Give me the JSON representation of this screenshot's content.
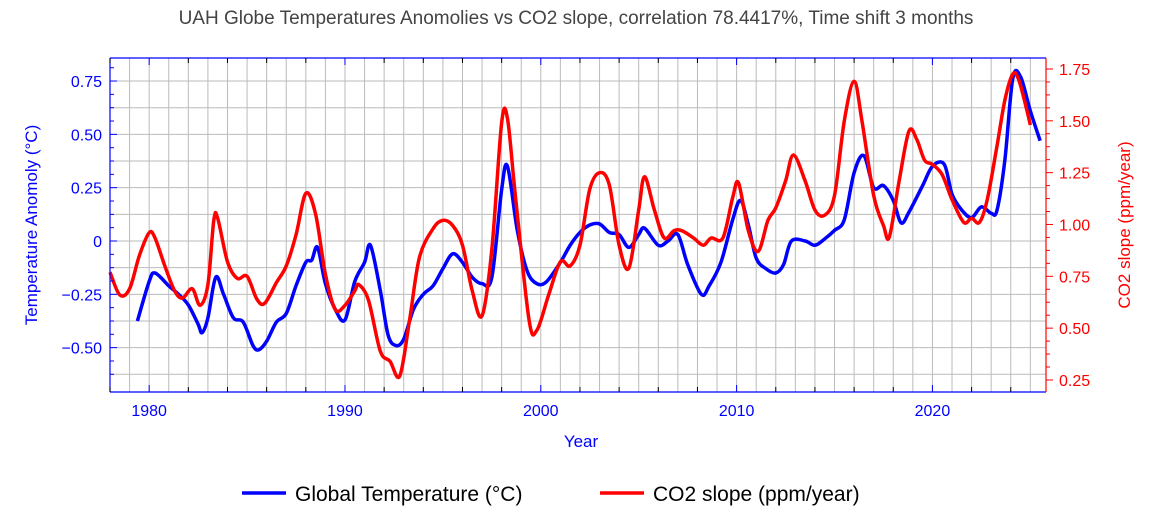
{
  "chart_data": {
    "type": "line",
    "title": "UAH Globe Temperatures Anomolies vs CO2 slope, correlation 78.4417%, Time shift 3 months",
    "xlabel": "Year",
    "ylabel": "Temperature Anomoly (°C)",
    "y2label": "CO2 slope (ppm/year)",
    "xlim": [
      1978,
      2025.8
    ],
    "ylim": [
      -0.708,
      0.858
    ],
    "y2lim": [
      0.192,
      1.803
    ],
    "xticks": [
      1980,
      1990,
      2000,
      2010,
      2020
    ],
    "xtick_labels": [
      "1980",
      "1990",
      "2000",
      "2010",
      "2020"
    ],
    "yticks": [
      0.75,
      0.5,
      0.25,
      0,
      -0.25,
      -0.5
    ],
    "ytick_labels": [
      "0.75",
      "0.50",
      "0.25",
      "0",
      "−0.25",
      "−0.50"
    ],
    "y2ticks": [
      1.75,
      1.5,
      1.25,
      1.0,
      0.75,
      0.5,
      0.25
    ],
    "y2tick_labels": [
      "1.75",
      "1.50",
      "1.25",
      "1.00",
      "0.75",
      "0.50",
      "0.25"
    ],
    "grid": true,
    "legend_position": "bottom",
    "colors": {
      "temp": "#0000ff",
      "co2": "#ff0000",
      "grid": "#bbbbbb"
    },
    "series": [
      {
        "name": "Global Temperature (°C)",
        "axis": "left",
        "x": [
          1979.4,
          1980,
          1980.3,
          1981,
          1981.5,
          1982,
          1982.5,
          1982.7,
          1983,
          1983.4,
          1983.8,
          1984.3,
          1984.8,
          1985.3,
          1985.6,
          1986,
          1986.5,
          1987,
          1987.5,
          1988,
          1988.3,
          1988.6,
          1989,
          1989.5,
          1990,
          1990.5,
          1991,
          1991.3,
          1991.8,
          1992.2,
          1992.6,
          1993,
          1993.5,
          1994,
          1994.5,
          1995,
          1995.5,
          1996,
          1996.5,
          1997,
          1997.5,
          1998,
          1998.3,
          1998.8,
          1999.3,
          1999.8,
          2000.3,
          2001,
          2001.5,
          2002,
          2002.5,
          2003,
          2003.5,
          2004,
          2004.5,
          2005,
          2005.3,
          2006,
          2006.5,
          2007,
          2007.5,
          2008.2,
          2008.6,
          2009.2,
          2009.8,
          2010.2,
          2010.6,
          2011,
          2011.5,
          2012,
          2012.4,
          2012.8,
          2013.5,
          2014,
          2014.5,
          2015,
          2015.5,
          2016,
          2016.5,
          2017,
          2017.5,
          2018,
          2018.4,
          2018.8,
          2019.5,
          2020,
          2020.6,
          2021,
          2021.5,
          2022,
          2022.5,
          2023,
          2023.3,
          2023.7,
          2024.1,
          2024.5,
          2025,
          2025.5
        ],
        "values": [
          -0.375,
          -0.19,
          -0.15,
          -0.21,
          -0.25,
          -0.3,
          -0.39,
          -0.43,
          -0.36,
          -0.17,
          -0.25,
          -0.36,
          -0.38,
          -0.49,
          -0.51,
          -0.47,
          -0.38,
          -0.34,
          -0.21,
          -0.1,
          -0.09,
          -0.03,
          -0.2,
          -0.32,
          -0.37,
          -0.19,
          -0.1,
          -0.02,
          -0.23,
          -0.44,
          -0.49,
          -0.46,
          -0.32,
          -0.25,
          -0.21,
          -0.13,
          -0.06,
          -0.1,
          -0.17,
          -0.2,
          -0.17,
          0.24,
          0.35,
          0.05,
          -0.14,
          -0.2,
          -0.19,
          -0.1,
          -0.02,
          0.04,
          0.075,
          0.08,
          0.04,
          0.03,
          -0.03,
          0.03,
          0.06,
          -0.02,
          0,
          0.03,
          -0.11,
          -0.25,
          -0.21,
          -0.1,
          0.1,
          0.19,
          0.075,
          -0.08,
          -0.13,
          -0.15,
          -0.11,
          0,
          0,
          -0.02,
          0.01,
          0.05,
          0.1,
          0.32,
          0.4,
          0.25,
          0.26,
          0.19,
          0.085,
          0.135,
          0.26,
          0.35,
          0.36,
          0.22,
          0.145,
          0.11,
          0.16,
          0.13,
          0.145,
          0.38,
          0.76,
          0.77,
          0.61,
          0.47
        ]
      },
      {
        "name": "CO2 slope (ppm/year)",
        "axis": "right",
        "x": [
          1978,
          1978.5,
          1979,
          1979.5,
          1980,
          1980.3,
          1980.8,
          1981.3,
          1981.7,
          1982.2,
          1982.6,
          1983,
          1983.3,
          1983.5,
          1984,
          1984.5,
          1985,
          1985.5,
          1985.9,
          1986.5,
          1987,
          1987.5,
          1988,
          1988.5,
          1989,
          1989.5,
          1990,
          1990.5,
          1990.7,
          1991.2,
          1991.8,
          1992.3,
          1992.8,
          1993.3,
          1993.8,
          1994.5,
          1995,
          1995.5,
          1996,
          1996.5,
          1997,
          1997.5,
          1998,
          1998.3,
          1998.7,
          1999.4,
          1999.8,
          2000.4,
          2001,
          2001.5,
          2002,
          2002.5,
          2003,
          2003.5,
          2004,
          2004.5,
          2005,
          2005.3,
          2005.8,
          2006.3,
          2006.8,
          2007.2,
          2007.8,
          2008.3,
          2008.7,
          2009.3,
          2009.8,
          2010.1,
          2010.6,
          2011.1,
          2011.6,
          2012,
          2012.5,
          2012.9,
          2013.5,
          2014,
          2014.5,
          2015,
          2015.5,
          2016,
          2016.4,
          2017,
          2017.5,
          2017.8,
          2018.3,
          2018.8,
          2019.2,
          2019.6,
          2020,
          2020.5,
          2021,
          2021.6,
          2022,
          2022.4,
          2022.8,
          2023.3,
          2023.7,
          2024.1,
          2024.4,
          2024.8,
          2025
        ],
        "values": [
          0.77,
          0.66,
          0.69,
          0.85,
          0.96,
          0.935,
          0.8,
          0.68,
          0.645,
          0.69,
          0.61,
          0.71,
          1.02,
          1.03,
          0.82,
          0.74,
          0.75,
          0.64,
          0.62,
          0.72,
          0.8,
          0.95,
          1.15,
          1.05,
          0.76,
          0.59,
          0.61,
          0.68,
          0.71,
          0.635,
          0.39,
          0.34,
          0.27,
          0.54,
          0.84,
          0.98,
          1.02,
          0.995,
          0.9,
          0.68,
          0.56,
          0.88,
          1.49,
          1.51,
          1.14,
          0.54,
          0.49,
          0.66,
          0.82,
          0.8,
          0.9,
          1.17,
          1.25,
          1.19,
          0.9,
          0.79,
          1.07,
          1.23,
          1.07,
          0.935,
          0.97,
          0.97,
          0.935,
          0.9,
          0.935,
          0.935,
          1.13,
          1.2,
          0.97,
          0.87,
          1.02,
          1.08,
          1.21,
          1.335,
          1.21,
          1.07,
          1.045,
          1.14,
          1.5,
          1.69,
          1.5,
          1.14,
          0.995,
          0.94,
          1.21,
          1.45,
          1.41,
          1.31,
          1.29,
          1.24,
          1.12,
          1.01,
          1.03,
          1.01,
          1.12,
          1.38,
          1.6,
          1.725,
          1.7,
          1.56,
          1.48
        ]
      }
    ]
  }
}
